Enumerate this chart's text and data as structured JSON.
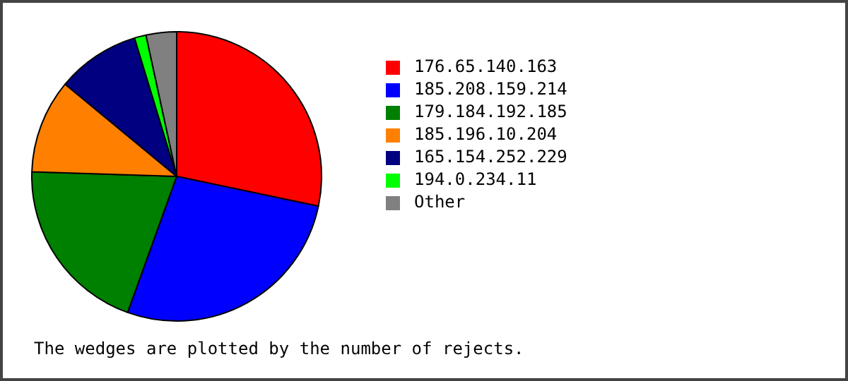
{
  "chart_data": {
    "type": "pie",
    "categories": [
      "176.65.140.163",
      "185.208.159.214",
      "179.184.192.185",
      "185.196.10.204",
      "165.154.252.229",
      "194.0.234.11",
      "Other"
    ],
    "values": [
      28.3,
      27.2,
      20.0,
      10.5,
      9.3,
      1.3,
      3.4
    ],
    "colors": [
      "#ff0000",
      "#0000ff",
      "#008000",
      "#ff8000",
      "#000080",
      "#00ff00",
      "#808080"
    ],
    "legend": "right",
    "annotations": [
      "The wedges are plotted by the number of rejects."
    ]
  }
}
